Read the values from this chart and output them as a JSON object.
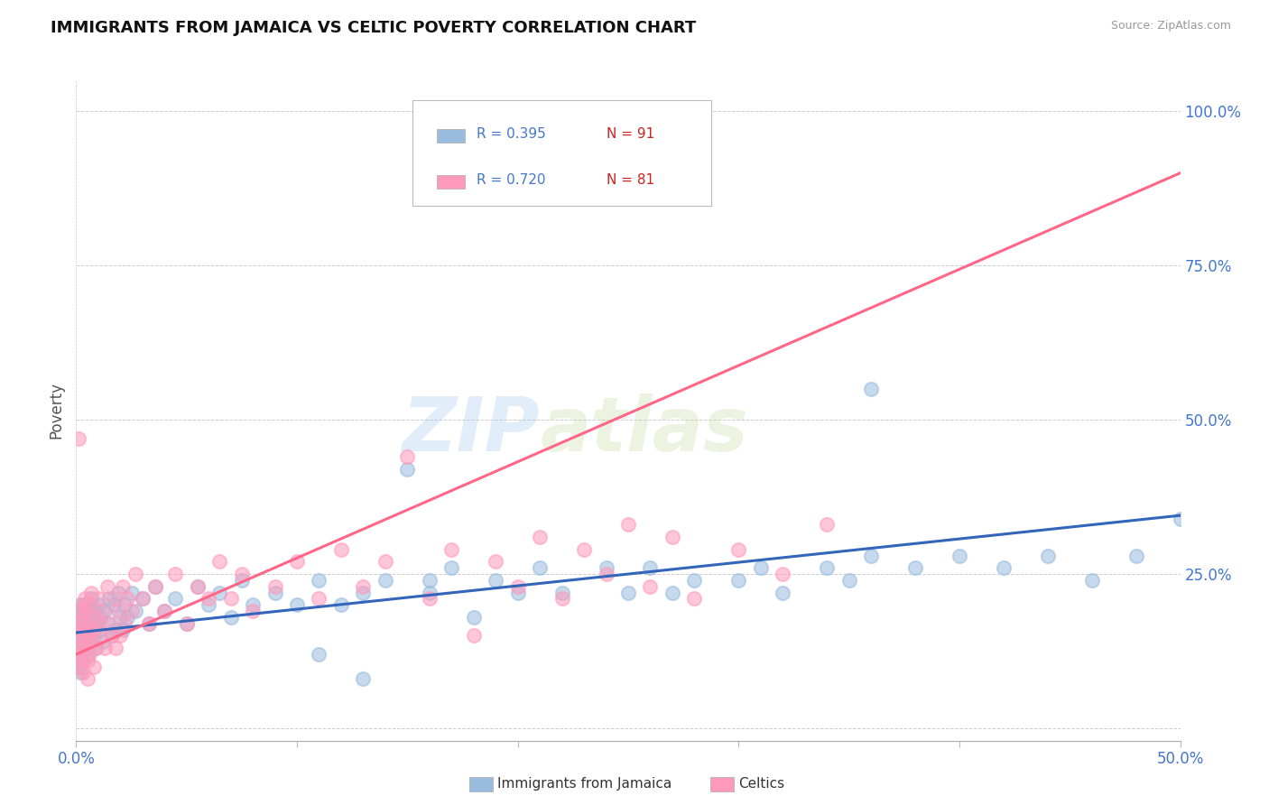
{
  "title": "IMMIGRANTS FROM JAMAICA VS CELTIC POVERTY CORRELATION CHART",
  "source_text": "Source: ZipAtlas.com",
  "ylabel": "Poverty",
  "xlim": [
    0.0,
    0.5
  ],
  "ylim": [
    -0.02,
    1.05
  ],
  "xtick_labels": [
    "0.0%",
    "",
    "",
    "",
    "",
    "50.0%"
  ],
  "xtick_vals": [
    0.0,
    0.1,
    0.2,
    0.3,
    0.4,
    0.5
  ],
  "ytick_labels_right": [
    "100.0%",
    "75.0%",
    "50.0%",
    "25.0%",
    ""
  ],
  "ytick_vals_right": [
    1.0,
    0.75,
    0.5,
    0.25,
    0.0
  ],
  "watermark": "ZIPatlas",
  "legend_r1": "R = 0.395",
  "legend_n1": "N = 91",
  "legend_r2": "R = 0.720",
  "legend_n2": "N = 81",
  "color_blue": "#99BBDD",
  "color_pink": "#FF99BB",
  "color_blue_line": "#3366BB",
  "color_pink_line": "#FF6688",
  "color_axis_text": "#4477CC",
  "background_color": "#FFFFFF",
  "grid_color": "#CCCCCC",
  "blue_scatter_x": [
    0.001,
    0.001,
    0.001,
    0.002,
    0.002,
    0.002,
    0.002,
    0.003,
    0.003,
    0.003,
    0.003,
    0.004,
    0.004,
    0.004,
    0.005,
    0.005,
    0.005,
    0.006,
    0.006,
    0.006,
    0.007,
    0.007,
    0.008,
    0.008,
    0.009,
    0.009,
    0.01,
    0.01,
    0.011,
    0.012,
    0.013,
    0.014,
    0.015,
    0.016,
    0.017,
    0.018,
    0.019,
    0.02,
    0.021,
    0.022,
    0.023,
    0.025,
    0.027,
    0.03,
    0.033,
    0.036,
    0.04,
    0.045,
    0.05,
    0.055,
    0.06,
    0.065,
    0.07,
    0.075,
    0.08,
    0.09,
    0.1,
    0.11,
    0.12,
    0.13,
    0.14,
    0.15,
    0.16,
    0.17,
    0.18,
    0.19,
    0.2,
    0.21,
    0.22,
    0.24,
    0.25,
    0.26,
    0.27,
    0.28,
    0.3,
    0.31,
    0.32,
    0.34,
    0.35,
    0.36,
    0.38,
    0.4,
    0.42,
    0.44,
    0.46,
    0.48,
    0.5,
    0.36,
    0.16,
    0.11,
    0.13
  ],
  "blue_scatter_y": [
    0.14,
    0.1,
    0.18,
    0.12,
    0.16,
    0.09,
    0.2,
    0.14,
    0.17,
    0.11,
    0.19,
    0.15,
    0.13,
    0.2,
    0.16,
    0.12,
    0.18,
    0.15,
    0.19,
    0.13,
    0.17,
    0.21,
    0.15,
    0.19,
    0.13,
    0.17,
    0.16,
    0.2,
    0.18,
    0.14,
    0.19,
    0.17,
    0.21,
    0.15,
    0.2,
    0.16,
    0.22,
    0.18,
    0.16,
    0.2,
    0.18,
    0.22,
    0.19,
    0.21,
    0.17,
    0.23,
    0.19,
    0.21,
    0.17,
    0.23,
    0.2,
    0.22,
    0.18,
    0.24,
    0.2,
    0.22,
    0.2,
    0.24,
    0.2,
    0.22,
    0.24,
    0.42,
    0.22,
    0.26,
    0.18,
    0.24,
    0.22,
    0.26,
    0.22,
    0.26,
    0.22,
    0.26,
    0.22,
    0.24,
    0.24,
    0.26,
    0.22,
    0.26,
    0.24,
    0.28,
    0.26,
    0.28,
    0.26,
    0.28,
    0.24,
    0.28,
    0.34,
    0.55,
    0.24,
    0.12,
    0.08
  ],
  "pink_scatter_x": [
    0.001,
    0.001,
    0.001,
    0.001,
    0.002,
    0.002,
    0.002,
    0.002,
    0.003,
    0.003,
    0.003,
    0.003,
    0.004,
    0.004,
    0.004,
    0.005,
    0.005,
    0.005,
    0.005,
    0.006,
    0.006,
    0.006,
    0.007,
    0.007,
    0.008,
    0.008,
    0.009,
    0.009,
    0.01,
    0.01,
    0.011,
    0.012,
    0.013,
    0.014,
    0.015,
    0.016,
    0.017,
    0.018,
    0.019,
    0.02,
    0.021,
    0.022,
    0.023,
    0.025,
    0.027,
    0.03,
    0.033,
    0.036,
    0.04,
    0.045,
    0.05,
    0.055,
    0.06,
    0.065,
    0.07,
    0.075,
    0.08,
    0.09,
    0.1,
    0.11,
    0.12,
    0.13,
    0.14,
    0.15,
    0.16,
    0.17,
    0.18,
    0.19,
    0.2,
    0.21,
    0.22,
    0.23,
    0.24,
    0.25,
    0.26,
    0.27,
    0.28,
    0.3,
    0.32,
    0.34,
    0.001
  ],
  "pink_scatter_y": [
    0.15,
    0.12,
    0.17,
    0.1,
    0.16,
    0.13,
    0.19,
    0.11,
    0.18,
    0.14,
    0.2,
    0.09,
    0.17,
    0.13,
    0.21,
    0.15,
    0.11,
    0.19,
    0.08,
    0.16,
    0.12,
    0.2,
    0.14,
    0.22,
    0.16,
    0.1,
    0.18,
    0.13,
    0.17,
    0.21,
    0.15,
    0.19,
    0.13,
    0.23,
    0.17,
    0.15,
    0.21,
    0.13,
    0.19,
    0.15,
    0.23,
    0.17,
    0.21,
    0.19,
    0.25,
    0.21,
    0.17,
    0.23,
    0.19,
    0.25,
    0.17,
    0.23,
    0.21,
    0.27,
    0.21,
    0.25,
    0.19,
    0.23,
    0.27,
    0.21,
    0.29,
    0.23,
    0.27,
    0.44,
    0.21,
    0.29,
    0.15,
    0.27,
    0.23,
    0.31,
    0.21,
    0.29,
    0.25,
    0.33,
    0.23,
    0.31,
    0.21,
    0.29,
    0.25,
    0.33,
    0.47
  ],
  "blue_trend_x": [
    0.0,
    0.5
  ],
  "blue_trend_y": [
    0.155,
    0.345
  ],
  "pink_trend_x": [
    0.0,
    0.5
  ],
  "pink_trend_y": [
    0.12,
    0.9
  ]
}
